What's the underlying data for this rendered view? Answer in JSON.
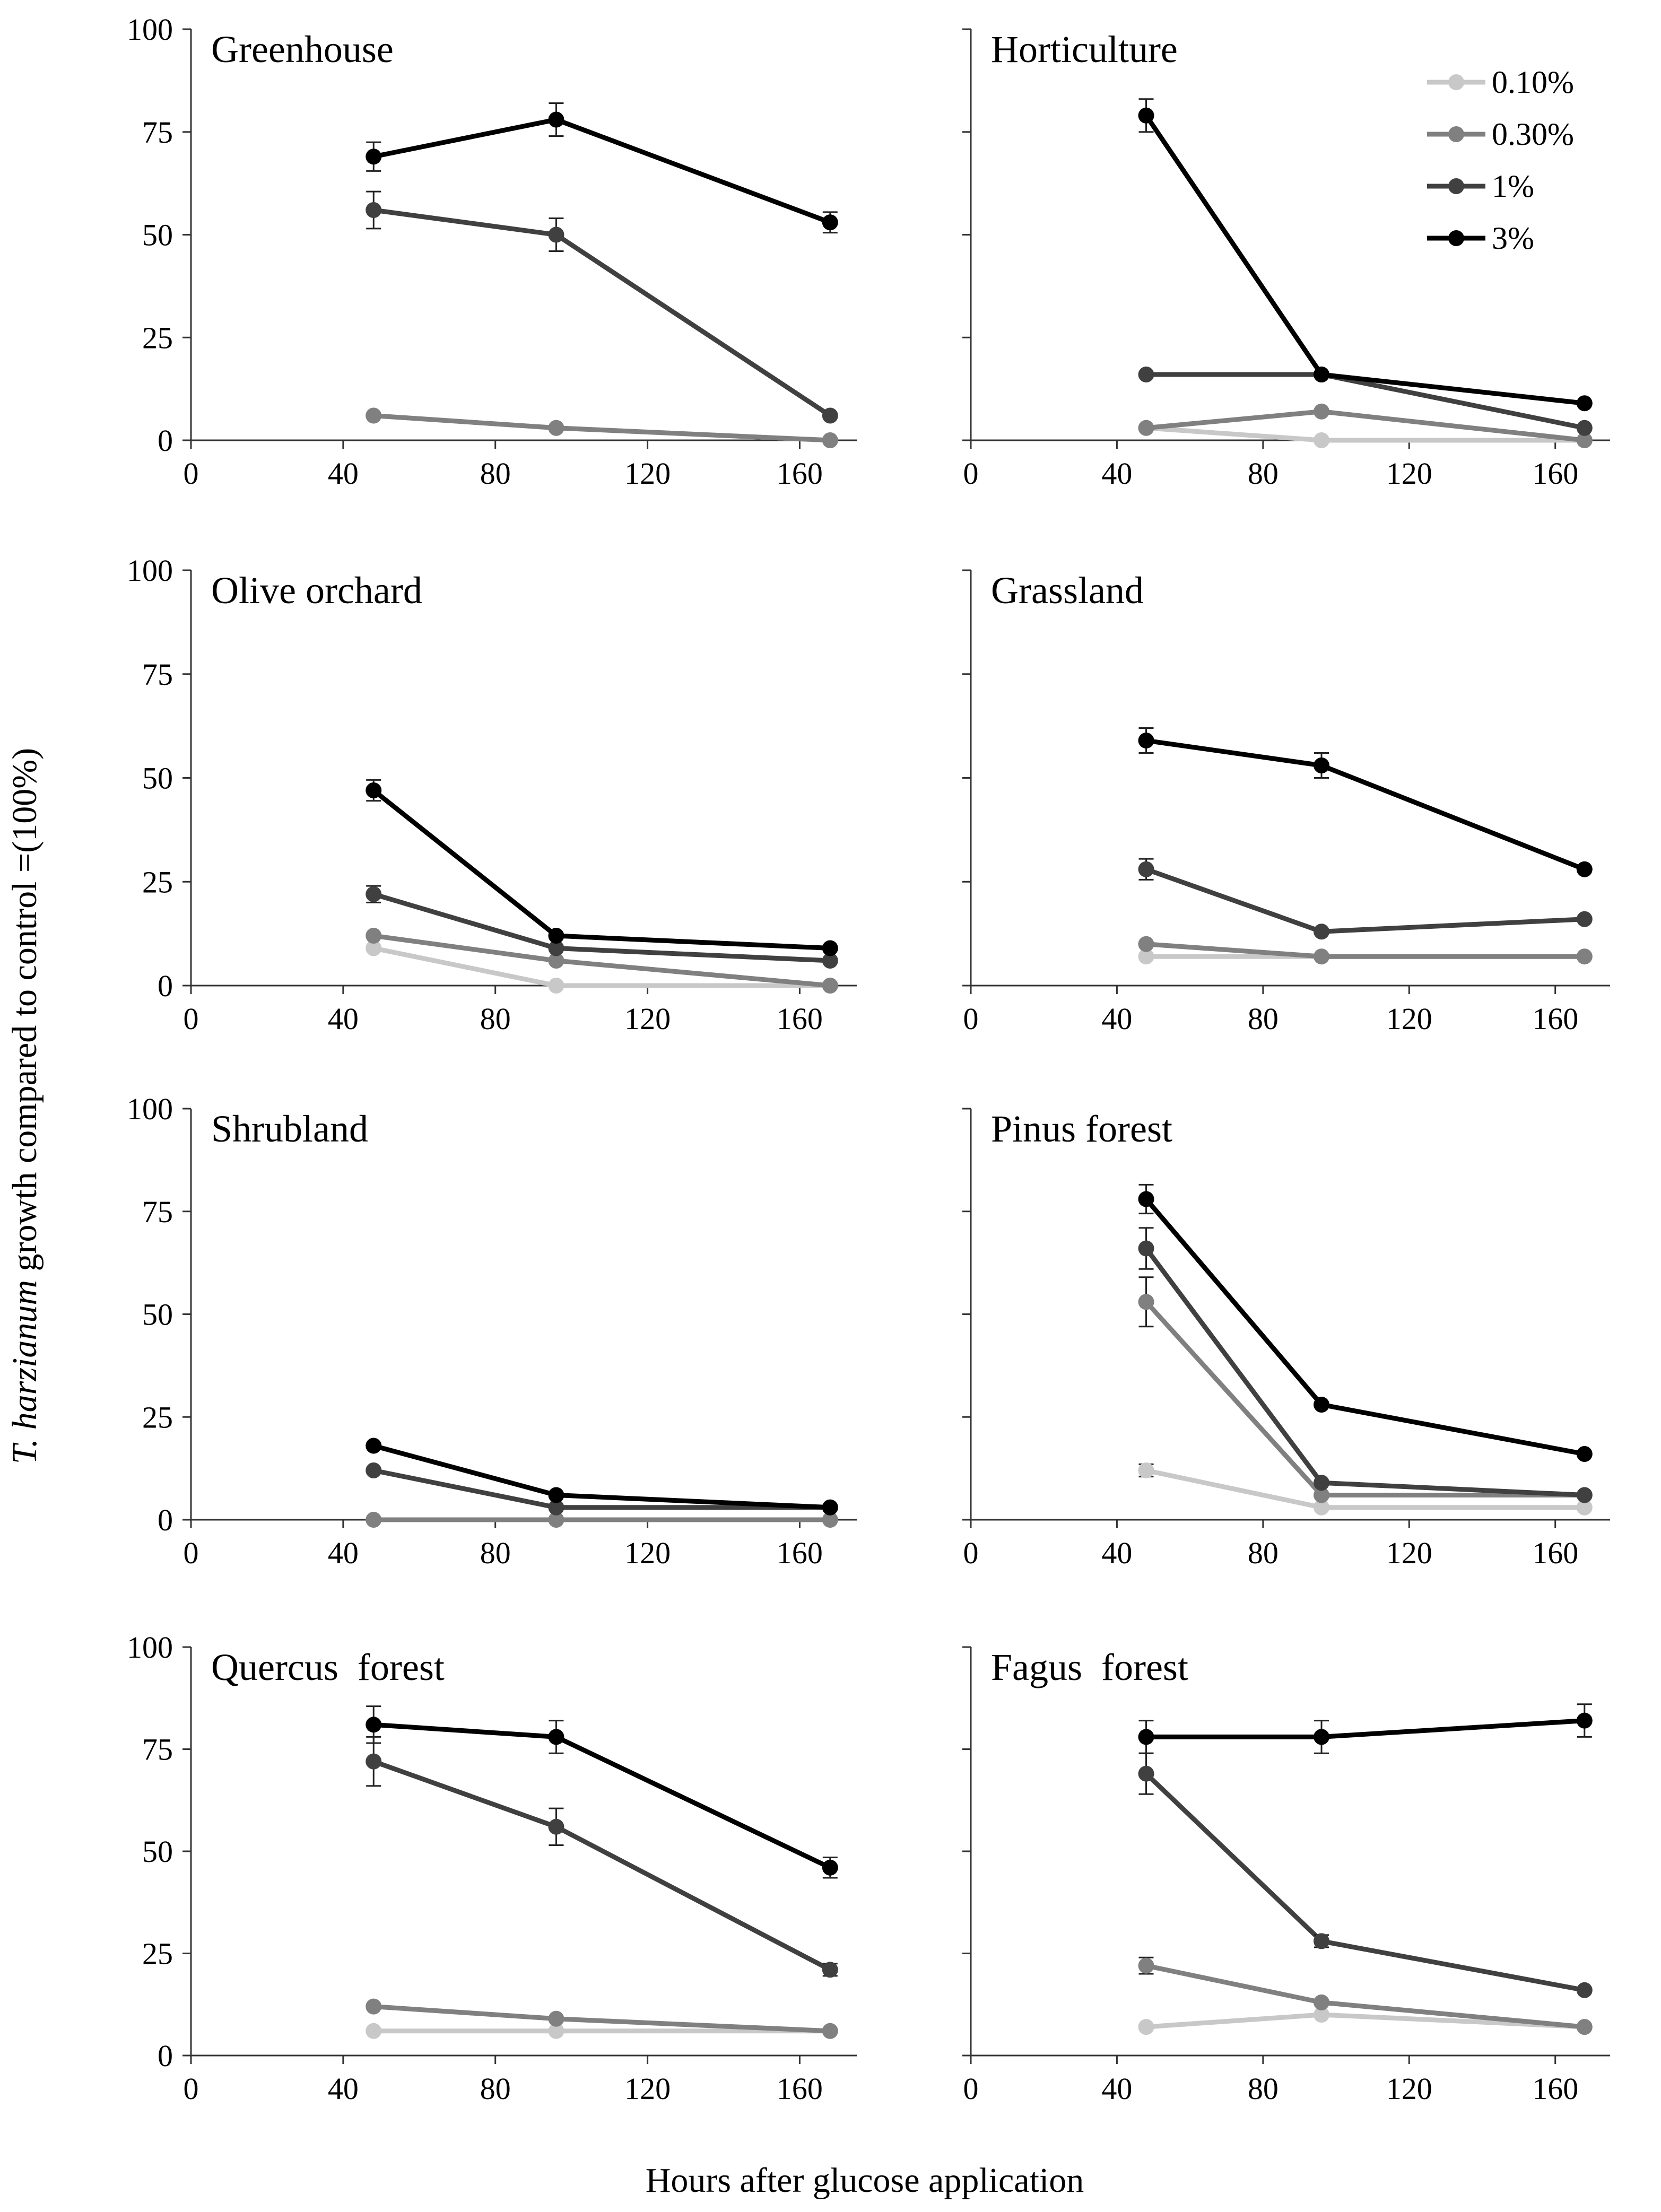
{
  "chart_data": {
    "type": "line",
    "ylabel": {
      "italic": "T. harzianum",
      "rest": " growth compared to control =(100%)"
    },
    "xlabel": "Hours after glucose application",
    "xlim": [
      0,
      175
    ],
    "ylim": [
      0,
      100
    ],
    "xticks": [
      0,
      40,
      80,
      120,
      160
    ],
    "yticks": [
      0,
      25,
      50,
      75,
      100
    ],
    "x": [
      48,
      96,
      168
    ],
    "legend": {
      "placement": "top-right of Horticulture panel",
      "entries": [
        {
          "label": "0.10%",
          "color": "#c8c8c8"
        },
        {
          "label": "0.30%",
          "color": "#808080"
        },
        {
          "label": "1%",
          "color": "#404040"
        },
        {
          "label": "3%",
          "color": "#000000"
        }
      ]
    },
    "panels": [
      {
        "title": "Greenhouse",
        "series": [
          {
            "color": "#c8c8c8",
            "values": [
              6,
              3,
              0
            ],
            "err": [
              0,
              0,
              0
            ]
          },
          {
            "color": "#808080",
            "values": [
              6,
              3,
              0
            ],
            "err": [
              0,
              0,
              0
            ]
          },
          {
            "color": "#404040",
            "values": [
              56,
              50,
              6
            ],
            "err": [
              4.5,
              4,
              0
            ]
          },
          {
            "color": "#000000",
            "values": [
              69,
              78,
              53
            ],
            "err": [
              3.5,
              4,
              2.5
            ]
          }
        ]
      },
      {
        "title": "Horticulture",
        "series": [
          {
            "color": "#c8c8c8",
            "values": [
              3,
              0,
              0
            ],
            "err": [
              0,
              0,
              0
            ]
          },
          {
            "color": "#808080",
            "values": [
              3,
              7,
              0
            ],
            "err": [
              0,
              0,
              0
            ]
          },
          {
            "color": "#404040",
            "values": [
              16,
              16,
              3
            ],
            "err": [
              0,
              0,
              0
            ]
          },
          {
            "color": "#000000",
            "values": [
              79,
              16,
              9
            ],
            "err": [
              4,
              0,
              0
            ]
          }
        ]
      },
      {
        "title": "Olive orchard",
        "series": [
          {
            "color": "#c8c8c8",
            "values": [
              9,
              0,
              0
            ],
            "err": [
              0,
              0,
              0
            ]
          },
          {
            "color": "#808080",
            "values": [
              12,
              6,
              0
            ],
            "err": [
              0,
              0,
              0
            ]
          },
          {
            "color": "#404040",
            "values": [
              22,
              9,
              6
            ],
            "err": [
              2,
              0,
              0
            ]
          },
          {
            "color": "#000000",
            "values": [
              47,
              12,
              9
            ],
            "err": [
              2.5,
              0,
              0
            ]
          }
        ]
      },
      {
        "title": "Grassland",
        "series": [
          {
            "color": "#c8c8c8",
            "values": [
              7,
              7,
              7
            ],
            "err": [
              0,
              0,
              0
            ]
          },
          {
            "color": "#808080",
            "values": [
              10,
              7,
              7
            ],
            "err": [
              0,
              0,
              0
            ]
          },
          {
            "color": "#404040",
            "values": [
              28,
              13,
              16
            ],
            "err": [
              2.5,
              0,
              0
            ]
          },
          {
            "color": "#000000",
            "values": [
              59,
              53,
              28
            ],
            "err": [
              3,
              3,
              0
            ]
          }
        ]
      },
      {
        "title": "Shrubland",
        "series": [
          {
            "color": "#c8c8c8",
            "values": [
              0,
              0,
              0
            ],
            "err": [
              0,
              0,
              0
            ]
          },
          {
            "color": "#808080",
            "values": [
              0,
              0,
              0
            ],
            "err": [
              0,
              0,
              0
            ]
          },
          {
            "color": "#404040",
            "values": [
              12,
              3,
              3
            ],
            "err": [
              0,
              0,
              0
            ]
          },
          {
            "color": "#000000",
            "values": [
              18,
              6,
              3
            ],
            "err": [
              0,
              0,
              0
            ]
          }
        ]
      },
      {
        "title": "Pinus forest",
        "series": [
          {
            "color": "#c8c8c8",
            "values": [
              12,
              3,
              3
            ],
            "err": [
              1.5,
              0,
              0
            ]
          },
          {
            "color": "#808080",
            "values": [
              53,
              6,
              6
            ],
            "err": [
              6,
              0,
              0
            ]
          },
          {
            "color": "#404040",
            "values": [
              66,
              9,
              6
            ],
            "err": [
              5,
              0,
              0
            ]
          },
          {
            "color": "#000000",
            "values": [
              78,
              28,
              16
            ],
            "err": [
              3.5,
              0,
              0
            ]
          }
        ]
      },
      {
        "title": "Quercus  forest",
        "series": [
          {
            "color": "#c8c8c8",
            "values": [
              6,
              6,
              6
            ],
            "err": [
              0,
              0,
              0
            ]
          },
          {
            "color": "#808080",
            "values": [
              12,
              9,
              6
            ],
            "err": [
              0,
              0,
              0
            ]
          },
          {
            "color": "#404040",
            "values": [
              72,
              56,
              21
            ],
            "err": [
              6,
              4.5,
              1.5
            ]
          },
          {
            "color": "#000000",
            "values": [
              81,
              78,
              46
            ],
            "err": [
              4.5,
              4,
              2.5
            ]
          }
        ]
      },
      {
        "title": "Fagus  forest",
        "series": [
          {
            "color": "#c8c8c8",
            "values": [
              7,
              10,
              7
            ],
            "err": [
              0,
              0,
              0
            ]
          },
          {
            "color": "#808080",
            "values": [
              22,
              13,
              7
            ],
            "err": [
              2,
              0,
              0
            ]
          },
          {
            "color": "#404040",
            "values": [
              69,
              28,
              16
            ],
            "err": [
              5,
              1.5,
              0
            ]
          },
          {
            "color": "#000000",
            "values": [
              78,
              78,
              82
            ],
            "err": [
              4,
              4,
              4
            ]
          }
        ]
      }
    ]
  }
}
